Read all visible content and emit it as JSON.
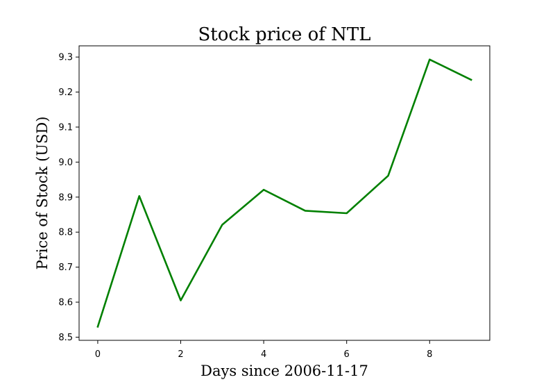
{
  "chart_data": {
    "type": "line",
    "title": "Stock price of NTL",
    "xlabel": "Days since 2006-11-17",
    "ylabel": "Price of Stock (USD)",
    "x": [
      0,
      1,
      2,
      3,
      4,
      5,
      6,
      7,
      8,
      9
    ],
    "series": [
      {
        "values": [
          8.53,
          8.903,
          8.605,
          8.821,
          8.921,
          8.861,
          8.854,
          8.961,
          9.293,
          9.235
        ]
      }
    ],
    "xticks": [
      "0",
      "2",
      "4",
      "6",
      "8"
    ],
    "yticks": [
      "8.5",
      "8.6",
      "8.7",
      "8.8",
      "8.9",
      "9.0",
      "9.1",
      "9.2",
      "9.3"
    ],
    "xlim": [
      -0.45,
      9.45
    ],
    "ylim": [
      8.491,
      9.332
    ],
    "grid": false,
    "line_color": "#008000"
  }
}
